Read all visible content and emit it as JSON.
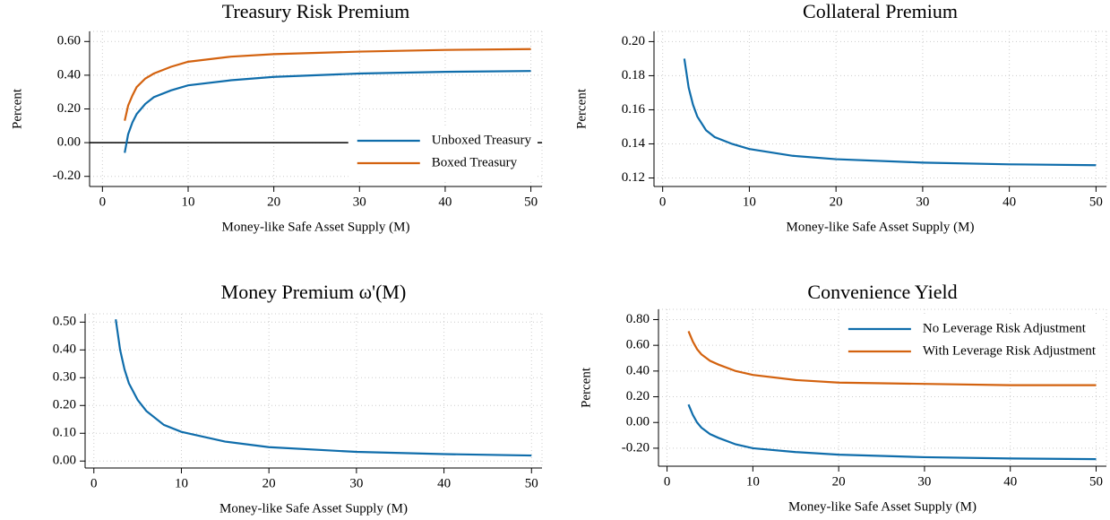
{
  "chart_data": [
    {
      "type": "line",
      "title": "Treasury Risk Premium",
      "xlabel": "Money-like Safe Asset Supply (M)",
      "ylabel": "Percent",
      "x": [
        2.6,
        3,
        3.5,
        4,
        5,
        6,
        8,
        10,
        15,
        20,
        30,
        40,
        50
      ],
      "series": [
        {
          "name": "Unboxed Treasury",
          "color": "#0f6dab",
          "values": [
            -0.06,
            0.05,
            0.12,
            0.17,
            0.23,
            0.27,
            0.31,
            0.34,
            0.37,
            0.39,
            0.41,
            0.42,
            0.425
          ]
        },
        {
          "name": "Boxed Treasury",
          "color": "#d3620f",
          "values": [
            0.13,
            0.22,
            0.28,
            0.33,
            0.38,
            0.41,
            0.45,
            0.48,
            0.51,
            0.525,
            0.54,
            0.55,
            0.555
          ]
        }
      ],
      "xlim": [
        -1.5,
        51.3
      ],
      "ylim": [
        -0.26,
        0.66
      ],
      "xticks": [
        0,
        10,
        20,
        30,
        40,
        50
      ],
      "yticks": [
        {
          "value": -0.2,
          "label": "-0.20"
        },
        {
          "value": 0,
          "label": "0.00"
        },
        {
          "value": 0.2,
          "label": "0.20"
        },
        {
          "value": 0.4,
          "label": "0.40"
        },
        {
          "value": 0.6,
          "label": "0.60"
        }
      ],
      "hline": 0,
      "grid": true,
      "legend": "lower right"
    },
    {
      "type": "line",
      "title": "Collateral Premium",
      "xlabel": "Money-like Safe Asset Supply (M)",
      "ylabel": "Percent",
      "x": [
        2.5,
        3,
        3.5,
        4,
        5,
        6,
        8,
        10,
        15,
        20,
        30,
        40,
        50
      ],
      "values": [
        0.19,
        0.173,
        0.163,
        0.156,
        0.148,
        0.144,
        0.14,
        0.137,
        0.133,
        0.131,
        0.129,
        0.128,
        0.1275
      ],
      "color": "#0f6dab",
      "xlim": [
        -1.0,
        51.2
      ],
      "ylim": [
        0.115,
        0.206
      ],
      "xticks": [
        0,
        10,
        20,
        30,
        40,
        50
      ],
      "yticks": [
        {
          "value": 0.12,
          "label": "0.12"
        },
        {
          "value": 0.14,
          "label": "0.14"
        },
        {
          "value": 0.16,
          "label": "0.16"
        },
        {
          "value": 0.18,
          "label": "0.18"
        },
        {
          "value": 0.2,
          "label": "0.20"
        }
      ],
      "grid": true
    },
    {
      "type": "line",
      "title": "Money Premium ω'(M)",
      "xlabel": "Money-like Safe Asset Supply (M)",
      "x": [
        2.5,
        3,
        3.5,
        4,
        5,
        6,
        8,
        10,
        15,
        20,
        30,
        40,
        50
      ],
      "values": [
        0.51,
        0.4,
        0.33,
        0.28,
        0.22,
        0.18,
        0.13,
        0.105,
        0.07,
        0.05,
        0.033,
        0.025,
        0.02
      ],
      "color": "#0f6dab",
      "xlim": [
        -1.0,
        51.2
      ],
      "ylim": [
        -0.025,
        0.53
      ],
      "xticks": [
        0,
        10,
        20,
        30,
        40,
        50
      ],
      "yticks": [
        {
          "value": 0,
          "label": "0.00"
        },
        {
          "value": 0.1,
          "label": "0.10"
        },
        {
          "value": 0.2,
          "label": "0.20"
        },
        {
          "value": 0.3,
          "label": "0.30"
        },
        {
          "value": 0.4,
          "label": "0.40"
        },
        {
          "value": 0.5,
          "label": "0.50"
        }
      ],
      "grid": true
    },
    {
      "type": "line",
      "title": "Convenience Yield",
      "xlabel": "Money-like Safe Asset Supply (M)",
      "ylabel": "Percent",
      "x": [
        2.5,
        3,
        3.5,
        4,
        5,
        6,
        8,
        10,
        15,
        20,
        30,
        40,
        50
      ],
      "series": [
        {
          "name": "No Leverage Risk Adjustment",
          "color": "#0f6dab",
          "values": [
            0.14,
            0.06,
            0.0,
            -0.04,
            -0.09,
            -0.12,
            -0.17,
            -0.2,
            -0.23,
            -0.25,
            -0.27,
            -0.28,
            -0.285
          ]
        },
        {
          "name": "With Leverage Risk Adjustment",
          "color": "#d3620f",
          "values": [
            0.71,
            0.63,
            0.57,
            0.53,
            0.48,
            0.45,
            0.4,
            0.37,
            0.33,
            0.31,
            0.3,
            0.29,
            0.29
          ]
        }
      ],
      "xlim": [
        -1.0,
        51.2
      ],
      "ylim": [
        -0.34,
        0.88
      ],
      "xticks": [
        0,
        10,
        20,
        30,
        40,
        50
      ],
      "yticks": [
        {
          "value": -0.2,
          "label": "-0.20"
        },
        {
          "value": 0,
          "label": "0.00"
        },
        {
          "value": 0.2,
          "label": "0.20"
        },
        {
          "value": 0.4,
          "label": "0.40"
        },
        {
          "value": 0.6,
          "label": "0.60"
        },
        {
          "value": 0.8,
          "label": "0.80"
        }
      ],
      "grid": true,
      "legend": "upper right"
    }
  ]
}
